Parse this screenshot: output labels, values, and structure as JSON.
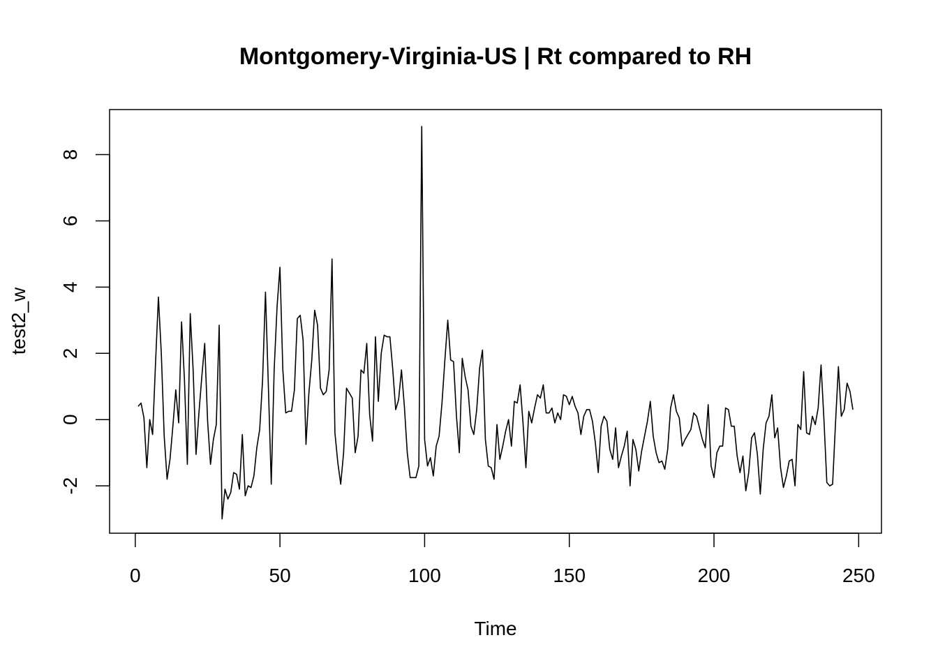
{
  "chart_data": {
    "type": "line",
    "title": "Montgomery-Virginia-US | Rt compared to RH",
    "xlabel": "Time",
    "ylabel": "test2_w",
    "xlim": [
      -8.88,
      257.88
    ],
    "ylim": [
      -3.43,
      9.36
    ],
    "x_ticks": [
      0,
      50,
      100,
      150,
      200,
      250
    ],
    "y_ticks": [
      -2,
      0,
      2,
      4,
      6,
      8
    ],
    "grid": false,
    "legend": "none",
    "line_color": "#000000",
    "x_start": 1,
    "values": [
      0.4,
      0.5,
      0.05,
      -1.45,
      0.0,
      -0.45,
      1.7,
      3.7,
      2.0,
      -0.5,
      -1.8,
      -1.2,
      -0.2,
      0.9,
      -0.1,
      2.95,
      1.2,
      -1.35,
      3.2,
      1.5,
      -1.05,
      0.2,
      1.3,
      2.3,
      -0.05,
      -1.35,
      -0.6,
      -0.15,
      2.85,
      -3.0,
      -2.1,
      -2.4,
      -2.2,
      -1.6,
      -1.65,
      -2.1,
      -0.45,
      -2.3,
      -2.0,
      -2.05,
      -1.7,
      -0.85,
      -0.3,
      1.2,
      3.85,
      1.0,
      -1.95,
      1.5,
      3.4,
      4.6,
      1.5,
      0.2,
      0.25,
      0.25,
      0.9,
      3.05,
      3.15,
      2.4,
      -0.75,
      0.8,
      1.8,
      3.3,
      2.85,
      0.95,
      0.75,
      0.85,
      1.5,
      4.85,
      -0.4,
      -1.3,
      -1.95,
      -1.0,
      0.95,
      0.8,
      0.65,
      -1.0,
      -0.5,
      1.5,
      1.4,
      2.3,
      0.15,
      -0.65,
      2.5,
      0.55,
      2.0,
      2.55,
      2.5,
      2.5,
      1.5,
      0.3,
      0.6,
      1.5,
      0.4,
      -1.0,
      -1.75,
      -1.75,
      -1.75,
      -1.4,
      8.85,
      -0.6,
      -1.4,
      -1.15,
      -1.7,
      -0.8,
      -0.5,
      0.5,
      1.8,
      3.0,
      1.8,
      1.75,
      0.1,
      -1.0,
      1.85,
      1.3,
      0.9,
      -0.2,
      -0.45,
      0.3,
      1.55,
      2.1,
      -0.6,
      -1.4,
      -1.45,
      -1.8,
      -0.15,
      -1.2,
      -0.8,
      -0.35,
      0.0,
      -0.8,
      0.55,
      0.5,
      1.05,
      -0.1,
      -1.45,
      0.25,
      -0.1,
      0.35,
      0.75,
      0.65,
      1.05,
      0.2,
      0.2,
      0.35,
      -0.1,
      0.2,
      0.0,
      0.75,
      0.7,
      0.45,
      0.7,
      0.4,
      0.2,
      -0.45,
      0.1,
      0.3,
      0.3,
      -0.05,
      -0.7,
      -1.6,
      -0.2,
      0.1,
      -0.05,
      -0.9,
      -1.2,
      -0.25,
      -1.45,
      -1.1,
      -0.8,
      -0.35,
      -2.0,
      -0.6,
      -0.9,
      -1.55,
      -0.95,
      -0.5,
      -0.05,
      0.55,
      -0.5,
      -1.0,
      -1.3,
      -1.25,
      -1.5,
      -0.9,
      0.35,
      0.75,
      0.25,
      0.05,
      -0.8,
      -0.6,
      -0.45,
      -0.3,
      0.2,
      0.1,
      -0.25,
      -0.6,
      -0.85,
      0.45,
      -1.4,
      -1.75,
      -1.0,
      -0.8,
      -0.8,
      0.35,
      0.3,
      -0.2,
      -0.2,
      -1.1,
      -1.6,
      -1.1,
      -2.15,
      -1.6,
      -0.55,
      -0.4,
      -1.05,
      -2.25,
      -0.9,
      -0.1,
      0.1,
      0.75,
      -0.55,
      -0.25,
      -1.45,
      -2.05,
      -1.7,
      -1.25,
      -1.2,
      -2.0,
      -0.15,
      -0.3,
      1.45,
      -0.4,
      -0.45,
      0.1,
      -0.15,
      0.35,
      1.65,
      0.0,
      -1.9,
      -2.0,
      -1.95,
      -0.1,
      1.6,
      0.1,
      0.3,
      1.1,
      0.85,
      0.3
    ]
  }
}
